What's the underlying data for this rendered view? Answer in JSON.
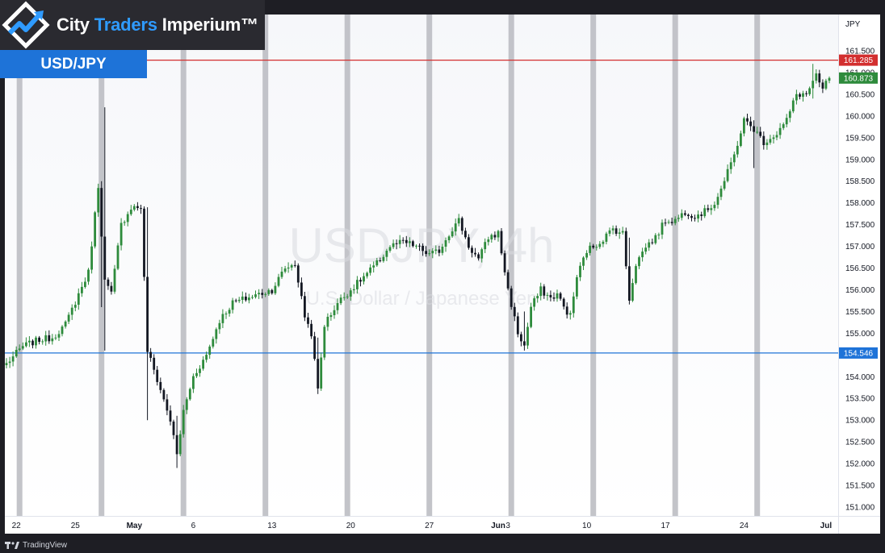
{
  "brand": {
    "name_part1": "City",
    "name_accent": "Traders",
    "name_part2": "Imperium™",
    "pair_badge": "USD/JPY"
  },
  "footer": {
    "tradingview": "TradingView"
  },
  "colors": {
    "up": "#26a69a",
    "up_body": "#2e8b3c",
    "down": "#131722",
    "resistance": "#d32f2f",
    "support": "#1e73d8",
    "last_price": "#2e8b3c",
    "session_band": "#b8bac0"
  },
  "chart_data": {
    "type": "candlestick",
    "watermark_title": "USDJPY, 4h",
    "watermark_subtitle": "U.S. Dollar / Japanese Yen",
    "y_unit": "JPY",
    "ylim": [
      150.7,
      161.9
    ],
    "y_ticks": [
      "151.000",
      "151.500",
      "152.000",
      "152.500",
      "153.000",
      "153.500",
      "154.000",
      "154.500",
      "155.000",
      "155.500",
      "156.000",
      "156.500",
      "157.000",
      "157.500",
      "158.000",
      "158.500",
      "159.000",
      "159.500",
      "160.000",
      "160.500",
      "161.000",
      "161.500"
    ],
    "x_ticks": [
      {
        "label": "22",
        "bar": 3
      },
      {
        "label": "25",
        "bar": 21
      },
      {
        "label": "May",
        "bar": 39
      },
      {
        "label": "6",
        "bar": 57
      },
      {
        "label": "13",
        "bar": 81
      },
      {
        "label": "20",
        "bar": 105
      },
      {
        "label": "27",
        "bar": 129
      },
      {
        "label": "Jun",
        "bar": 150
      },
      {
        "label": "3",
        "bar": 153
      },
      {
        "label": "10",
        "bar": 177
      },
      {
        "label": "17",
        "bar": 201
      },
      {
        "label": "24",
        "bar": 225
      },
      {
        "label": "Jul",
        "bar": 250
      }
    ],
    "session_bands_at_bar": [
      4,
      29,
      54,
      79,
      104,
      129,
      154,
      179,
      204,
      229
    ],
    "horizontal_levels": [
      {
        "name": "resistance",
        "value": 161.285,
        "label": "161.285",
        "color": "#d32f2f"
      },
      {
        "name": "support",
        "value": 154.546,
        "label": "154.546",
        "color": "#1e73d8"
      }
    ],
    "last_price": {
      "value": 160.873,
      "label": "160.873"
    },
    "anchors": [
      [
        0,
        154.3
      ],
      [
        5,
        154.7
      ],
      [
        10,
        154.85
      ],
      [
        14,
        154.9
      ],
      [
        18,
        155.2
      ],
      [
        22,
        155.9
      ],
      [
        25,
        156.4
      ],
      [
        28,
        158.4
      ],
      [
        30,
        156.2
      ],
      [
        32,
        155.9
      ],
      [
        35,
        157.5
      ],
      [
        38,
        157.9
      ],
      [
        41,
        157.9
      ],
      [
        43,
        154.6
      ],
      [
        47,
        153.7
      ],
      [
        50,
        153.0
      ],
      [
        52,
        152.2
      ],
      [
        54,
        153.2
      ],
      [
        57,
        154.0
      ],
      [
        61,
        154.5
      ],
      [
        65,
        155.3
      ],
      [
        69,
        155.7
      ],
      [
        73,
        155.8
      ],
      [
        77,
        155.9
      ],
      [
        81,
        156.0
      ],
      [
        85,
        156.5
      ],
      [
        88,
        156.6
      ],
      [
        91,
        155.4
      ],
      [
        93,
        155.0
      ],
      [
        95,
        153.7
      ],
      [
        97,
        155.2
      ],
      [
        101,
        155.7
      ],
      [
        105,
        156.0
      ],
      [
        109,
        156.3
      ],
      [
        113,
        156.6
      ],
      [
        117,
        157.0
      ],
      [
        121,
        157.1
      ],
      [
        125,
        157.0
      ],
      [
        129,
        156.8
      ],
      [
        132,
        156.9
      ],
      [
        135,
        157.3
      ],
      [
        138,
        157.6
      ],
      [
        141,
        157.0
      ],
      [
        144,
        156.7
      ],
      [
        147,
        157.2
      ],
      [
        150,
        157.3
      ],
      [
        153,
        156.0
      ],
      [
        156,
        155.0
      ],
      [
        158,
        154.7
      ],
      [
        160,
        155.6
      ],
      [
        163,
        156.0
      ],
      [
        166,
        155.8
      ],
      [
        168,
        155.9
      ],
      [
        170,
        155.6
      ],
      [
        172,
        155.4
      ],
      [
        174,
        156.3
      ],
      [
        177,
        156.9
      ],
      [
        181,
        157.1
      ],
      [
        185,
        157.4
      ],
      [
        188,
        157.3
      ],
      [
        190,
        155.8
      ],
      [
        192,
        156.6
      ],
      [
        195,
        157.0
      ],
      [
        198,
        157.2
      ],
      [
        201,
        157.6
      ],
      [
        204,
        157.6
      ],
      [
        207,
        157.8
      ],
      [
        210,
        157.7
      ],
      [
        213,
        157.8
      ],
      [
        216,
        158.0
      ],
      [
        219,
        158.5
      ],
      [
        222,
        159.1
      ],
      [
        225,
        159.9
      ],
      [
        228,
        159.7
      ],
      [
        231,
        159.4
      ],
      [
        235,
        159.6
      ],
      [
        238,
        159.9
      ],
      [
        241,
        160.5
      ],
      [
        244,
        160.5
      ],
      [
        247,
        160.9
      ],
      [
        249,
        160.6
      ],
      [
        251,
        160.9
      ]
    ],
    "spikes": [
      {
        "bar": 29,
        "high": 158.5,
        "low": 155.6
      },
      {
        "bar": 30,
        "high": 160.2,
        "low": 154.6
      },
      {
        "bar": 43,
        "high": 157.9,
        "low": 153.0
      },
      {
        "bar": 52,
        "high": 153.1,
        "low": 151.9
      },
      {
        "bar": 95,
        "high": 154.9,
        "low": 153.6
      },
      {
        "bar": 158,
        "high": 155.5,
        "low": 154.6
      },
      {
        "bar": 190,
        "high": 157.2,
        "low": 155.75
      },
      {
        "bar": 228,
        "high": 159.9,
        "low": 158.8
      },
      {
        "bar": 246,
        "high": 161.2,
        "low": 160.4
      }
    ]
  }
}
